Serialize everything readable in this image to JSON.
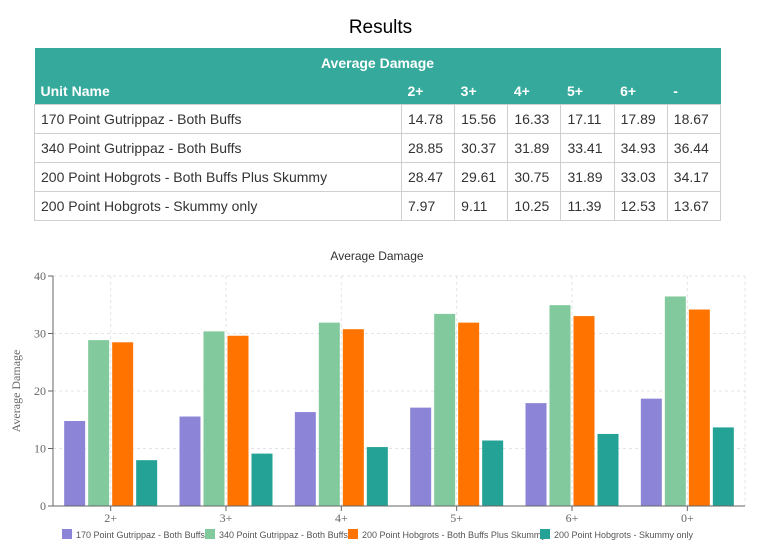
{
  "page_title": "Results",
  "table": {
    "group_header": "Average Damage",
    "columns": [
      "Unit Name",
      "2+",
      "3+",
      "4+",
      "5+",
      "6+",
      "-"
    ],
    "rows": [
      {
        "name": "170 Point Gutrippaz - Both Buffs",
        "values": [
          "14.78",
          "15.56",
          "16.33",
          "17.11",
          "17.89",
          "18.67"
        ]
      },
      {
        "name": "340 Point Gutrippaz - Both Buffs",
        "values": [
          "28.85",
          "30.37",
          "31.89",
          "33.41",
          "34.93",
          "36.44"
        ]
      },
      {
        "name": "200 Point Hobgrots - Both Buffs Plus Skummy",
        "values": [
          "28.47",
          "29.61",
          "30.75",
          "31.89",
          "33.03",
          "34.17"
        ]
      },
      {
        "name": "200 Point Hobgrots - Skummy only",
        "values": [
          "7.97",
          "9.11",
          "10.25",
          "11.39",
          "12.53",
          "13.67"
        ]
      }
    ]
  },
  "chart_data": {
    "type": "bar",
    "title": "Average Damage",
    "xlabel": "",
    "ylabel": "Average Damage",
    "ylim": [
      0,
      40
    ],
    "yticks": [
      0,
      10,
      20,
      30,
      40
    ],
    "grid": true,
    "legend_position": "bottom",
    "categories": [
      "2+",
      "3+",
      "4+",
      "5+",
      "6+",
      "0+"
    ],
    "series": [
      {
        "name": "170 Point Gutrippaz - Both Buffs",
        "color": "#8b84d7",
        "values": [
          14.78,
          15.56,
          16.33,
          17.11,
          17.89,
          18.67
        ]
      },
      {
        "name": "340 Point Gutrippaz - Both Buffs",
        "color": "#82ca9d",
        "values": [
          28.85,
          30.37,
          31.89,
          33.41,
          34.93,
          36.44
        ]
      },
      {
        "name": "200 Point Hobgrots - Both Buffs Plus Skummy",
        "color": "#ff7300",
        "values": [
          28.47,
          29.61,
          30.75,
          31.89,
          33.03,
          34.17
        ]
      },
      {
        "name": "200 Point Hobgrots - Skummy only",
        "color": "#25a296",
        "values": [
          7.97,
          9.11,
          10.25,
          11.39,
          12.53,
          13.67
        ]
      }
    ]
  }
}
